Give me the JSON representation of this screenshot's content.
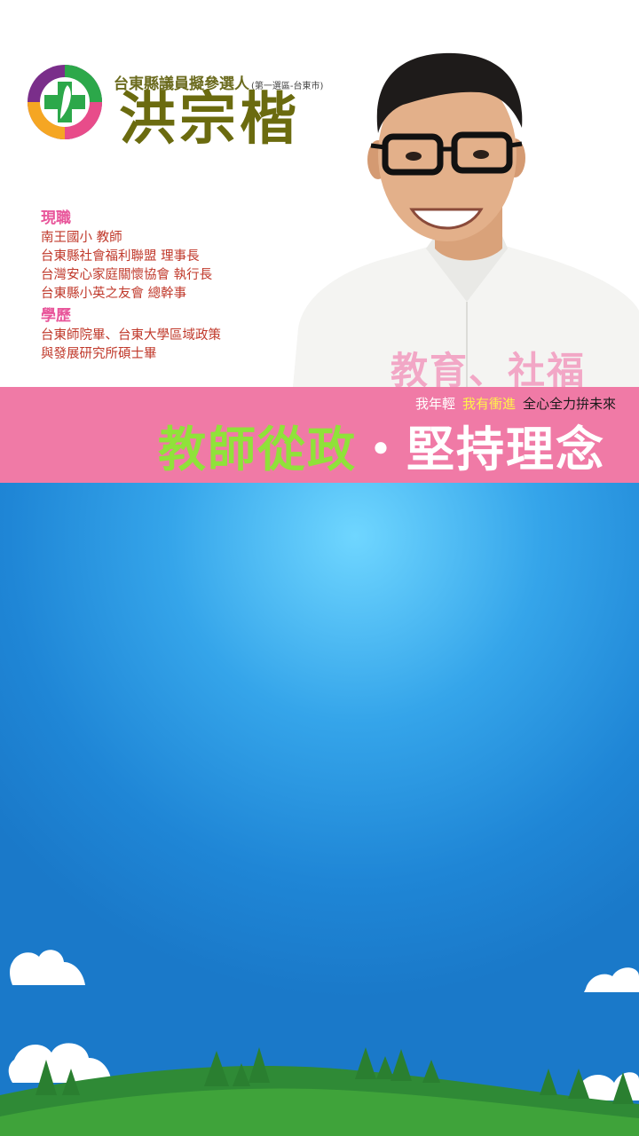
{
  "candidate": {
    "subtitle": "台東縣議員擬參選人",
    "district": "(第一選區-台東市)",
    "name": "洪宗楷"
  },
  "bio": {
    "current_heading": "現職",
    "current_items": [
      "南王國小 教師",
      "台東縣社會福利聯盟 理事長",
      "台灣安心家庭關懷協會 執行長",
      "台東縣小英之友會 總幹事"
    ],
    "education_heading": "學歷",
    "education_items": [
      "台東師院畢、台東大學區域政策",
      "與發展研究所碩士畢"
    ]
  },
  "slogan_overlay": "教育、社福",
  "band": {
    "tagline_a": "我年輕",
    "tagline_b": "我有衝進",
    "tagline_c": "全心全力拚未來",
    "headline_green": "教師從政",
    "headline_white": "・堅持理念"
  },
  "colors": {
    "band": "#f07aa6",
    "sky": "#1f86d6",
    "name": "#6b6b0f",
    "grass": "#3fa33a"
  }
}
